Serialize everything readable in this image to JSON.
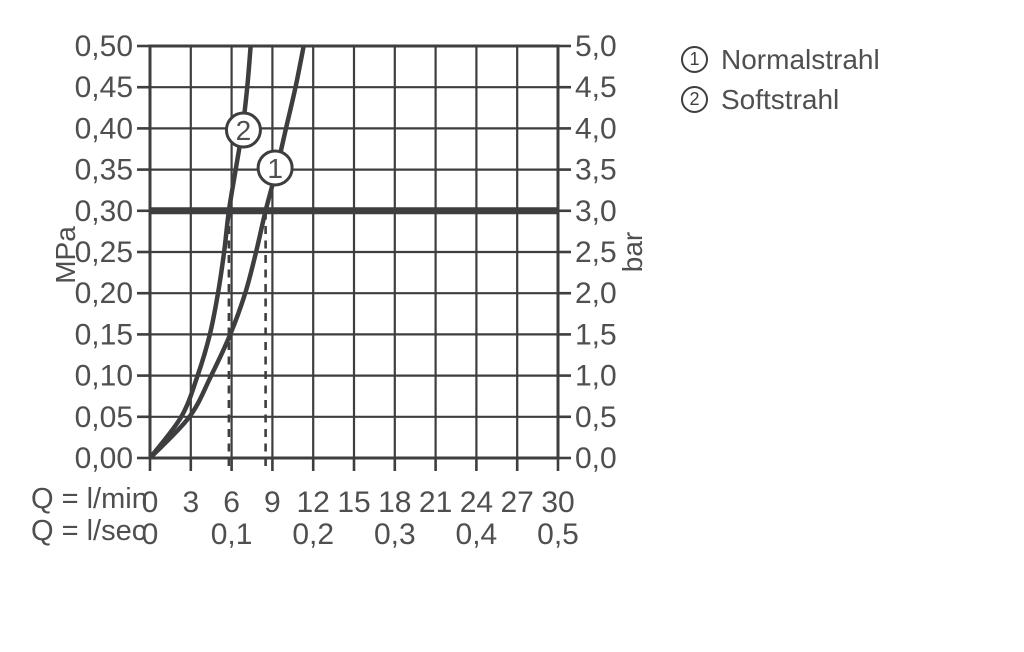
{
  "chart_data": {
    "type": "line",
    "title": "",
    "grid": true,
    "legend_position": "top-right-outside",
    "x_axis": {
      "label_lmin": "Q = l/min",
      "label_lsec": "Q = l/sec",
      "range_lmin": [
        0,
        30
      ],
      "ticks_lmin": [
        "0",
        "3",
        "6",
        "9",
        "12",
        "15",
        "18",
        "21",
        "24",
        "27",
        "30"
      ],
      "tick_values_lmin": [
        0,
        3,
        6,
        9,
        12,
        15,
        18,
        21,
        24,
        27,
        30
      ],
      "ticks_lsec": [
        "0",
        "0,1",
        "0,2",
        "0,3",
        "0,4",
        "0,5"
      ],
      "tick_values_lsec_in_lmin": [
        0,
        6,
        12,
        18,
        24,
        30
      ]
    },
    "y_axis_left": {
      "label": "MPa",
      "range": [
        0,
        0.5
      ],
      "ticks": [
        "0,00",
        "0,05",
        "0,10",
        "0,15",
        "0,20",
        "0,25",
        "0,30",
        "0,35",
        "0,40",
        "0,45",
        "0,50"
      ],
      "tick_values": [
        0,
        0.05,
        0.1,
        0.15,
        0.2,
        0.25,
        0.3,
        0.35,
        0.4,
        0.45,
        0.5
      ]
    },
    "y_axis_right": {
      "label": "bar",
      "range": [
        0,
        5
      ],
      "ticks": [
        "0,0",
        "0,5",
        "1,0",
        "1,5",
        "2,0",
        "2,5",
        "3,0",
        "3,5",
        "4,0",
        "4,5",
        "5,0"
      ],
      "tick_values": [
        0,
        0.5,
        1.0,
        1.5,
        2.0,
        2.5,
        3.0,
        3.5,
        4.0,
        4.5,
        5.0
      ]
    },
    "reference_line": {
      "mpa": 0.3,
      "bar": 3.0
    },
    "guide_lines_lmin": [
      5.8,
      8.5
    ],
    "series": [
      {
        "id": "1",
        "name": "Normalstrahl",
        "points_lmin_mpa": [
          [
            0,
            0
          ],
          [
            2.9,
            0.05
          ],
          [
            4.5,
            0.1
          ],
          [
            5.9,
            0.15
          ],
          [
            7.0,
            0.2
          ],
          [
            7.8,
            0.25
          ],
          [
            8.5,
            0.3
          ],
          [
            9.3,
            0.35
          ],
          [
            10.0,
            0.4
          ],
          [
            10.7,
            0.45
          ],
          [
            11.3,
            0.5
          ]
        ],
        "marker": {
          "q": 9.2,
          "mpa": 0.352
        },
        "flow_at_3bar_lmin": 8.5
      },
      {
        "id": "2",
        "name": "Softstrahl",
        "points_lmin_mpa": [
          [
            0,
            0
          ],
          [
            2.3,
            0.05
          ],
          [
            3.5,
            0.1
          ],
          [
            4.4,
            0.15
          ],
          [
            5.0,
            0.2
          ],
          [
            5.45,
            0.25
          ],
          [
            5.8,
            0.3
          ],
          [
            6.3,
            0.35
          ],
          [
            6.8,
            0.4
          ],
          [
            7.15,
            0.45
          ],
          [
            7.4,
            0.5
          ]
        ],
        "marker": {
          "q": 6.87,
          "mpa": 0.398
        },
        "flow_at_3bar_lmin": 5.8
      }
    ]
  },
  "colors": {
    "line": "#3e3e40",
    "text": "#4f4f51",
    "background": "#ffffff"
  }
}
